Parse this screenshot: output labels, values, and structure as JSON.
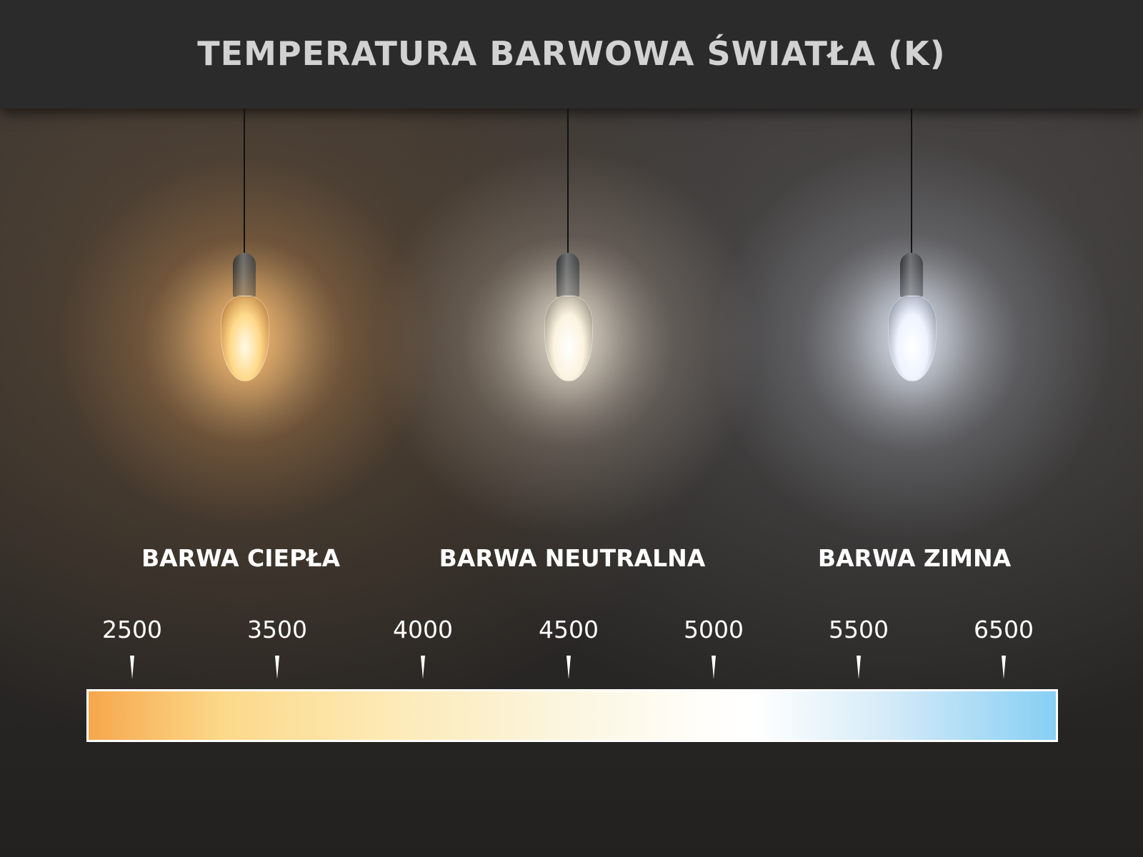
{
  "title": "TEMPERATURA BARWOWA ŚWIATŁA (K)",
  "categories": [
    "BARWA CIEPŁA",
    "BARWA NEUTRALNA",
    "BARWA ZIMNA"
  ],
  "scale": {
    "ticks": [
      "2500",
      "3500",
      "4000",
      "4500",
      "5000",
      "5500",
      "6500"
    ],
    "gradient_colors": [
      "#f6a74c",
      "#fcd98a",
      "#fffefa",
      "#87cff4"
    ]
  },
  "bulbs": [
    {
      "glow": "#ffcf8a"
    },
    {
      "glow": "#fff8ea"
    },
    {
      "glow": "#eef3ff"
    }
  ]
}
